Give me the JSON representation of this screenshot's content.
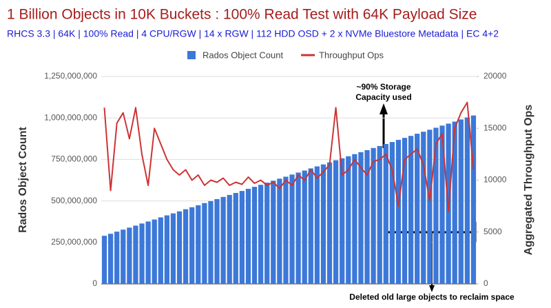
{
  "chart_data": {
    "type": "bar-line",
    "title": "1 Billion Objects in 10K Buckets : 100% Read Test with 64K Payload Size",
    "subtitle": "RHCS 3.3 | 64K | 100% Read | 4 CPU/RGW | 14 x RGW | 112 HDD OSD + 2 x NVMe Bluestore Metadata | EC 4+2",
    "y_label": "Rados Object Count",
    "y2_label": "Aggregated Throughput Ops",
    "categories": [
      null,
      null,
      null,
      null,
      null,
      null,
      null,
      null,
      null,
      null,
      null,
      null,
      null,
      null,
      null,
      null,
      null,
      null,
      null,
      null,
      null,
      null,
      null,
      null,
      null,
      null,
      null,
      null,
      null,
      null,
      null,
      null,
      null,
      null,
      null,
      null,
      null,
      null,
      null,
      null,
      null,
      null,
      null,
      null,
      null,
      null,
      null,
      null,
      null,
      null,
      null,
      null,
      null,
      null,
      null,
      null,
      null,
      null,
      null,
      null
    ],
    "series": [
      {
        "name": "Rados Object Count",
        "color": "#3c78d8",
        "type": "bar",
        "axis": "y",
        "values": [
          290000000,
          302000000,
          315000000,
          327000000,
          339000000,
          351000000,
          364000000,
          376000000,
          388000000,
          401000000,
          413000000,
          425000000,
          437000000,
          450000000,
          462000000,
          474000000,
          487000000,
          499000000,
          511000000,
          524000000,
          536000000,
          548000000,
          560000000,
          573000000,
          585000000,
          597000000,
          610000000,
          622000000,
          634000000,
          646000000,
          659000000,
          671000000,
          683000000,
          696000000,
          708000000,
          720000000,
          732000000,
          745000000,
          757000000,
          769000000,
          782000000,
          794000000,
          806000000,
          819000000,
          831000000,
          843000000,
          855000000,
          868000000,
          880000000,
          892000000,
          905000000,
          917000000,
          929000000,
          941000000,
          954000000,
          966000000,
          978000000,
          991000000,
          1003000000,
          1015000000
        ]
      },
      {
        "name": "Throughput Ops",
        "color": "#cc3333",
        "type": "line",
        "axis": "y2",
        "values": [
          17000,
          9000,
          15500,
          16500,
          14000,
          17000,
          12500,
          9500,
          15000,
          13500,
          12000,
          11000,
          10500,
          11000,
          10000,
          10500,
          9500,
          10000,
          9800,
          10200,
          9500,
          9800,
          9600,
          10300,
          9700,
          10000,
          9500,
          9800,
          9200,
          10000,
          9500,
          10500,
          10000,
          11000,
          10200,
          10800,
          11500,
          17000,
          10500,
          11000,
          12000,
          11200,
          10500,
          11800,
          12000,
          12500,
          11000,
          7500,
          12000,
          12500,
          13000,
          11500,
          8000,
          13500,
          14500,
          7000,
          15000,
          16500,
          17500,
          11000
        ]
      }
    ],
    "ylim": [
      0,
      1250000000
    ],
    "yticks": [
      0,
      {
        "value": 250000000,
        "label": "250,000,000"
      },
      {
        "value": 500000000,
        "label": "500,000,000"
      },
      {
        "value": 750000000,
        "label": "750,000,000"
      },
      {
        "value": 1000000000,
        "label": "1,000,000,000"
      },
      {
        "value": 1250000000,
        "label": "1,250,000,000"
      }
    ],
    "y2lim": [
      0,
      20000
    ],
    "y2ticks": [
      0,
      5000,
      10000,
      15000,
      20000
    ],
    "grid": true,
    "legend": "top",
    "annotations": [
      "~90% Storage",
      "Capacity used",
      "Deleted old large objects to reclaim space"
    ]
  }
}
